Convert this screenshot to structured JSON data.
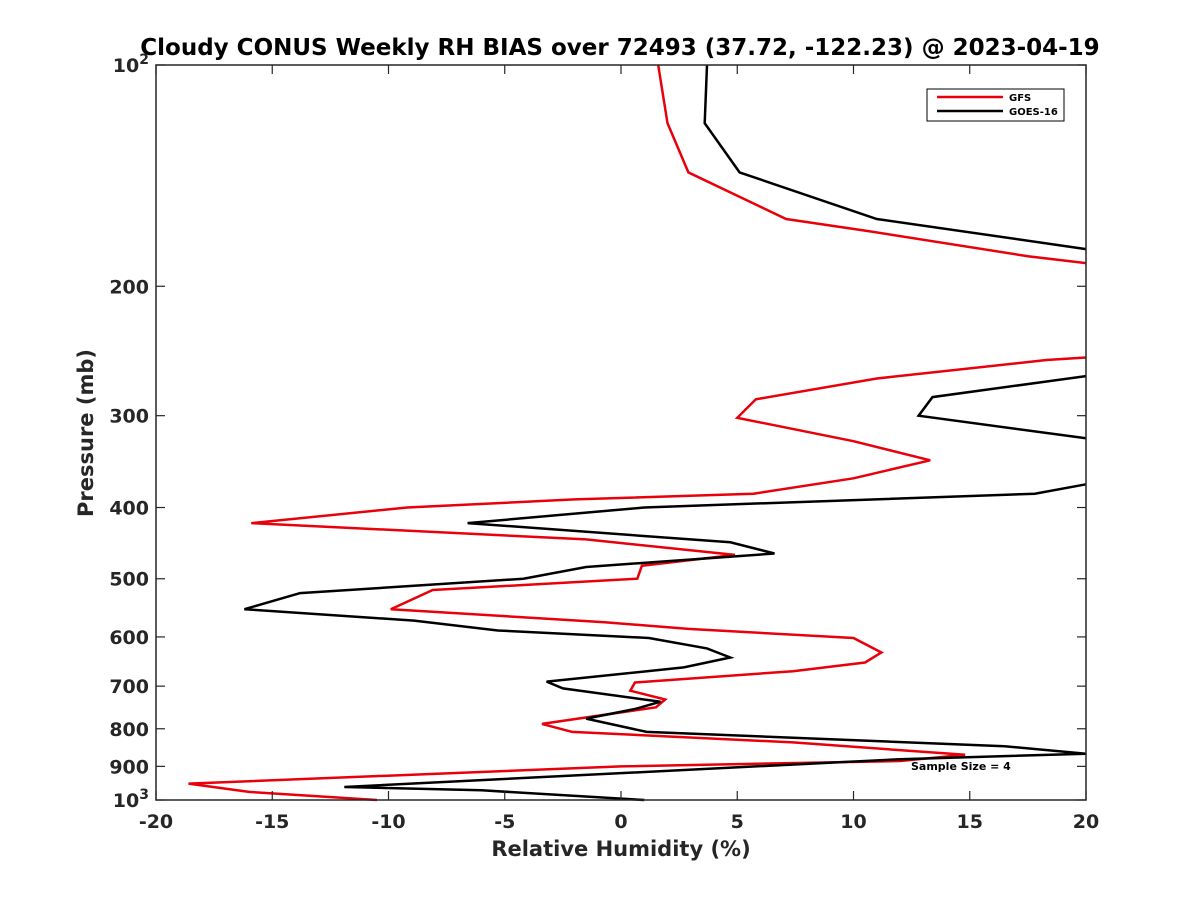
{
  "chart_data": {
    "type": "line",
    "title": "Cloudy CONUS Weekly RH BIAS over 72493 (37.72, -122.23) @ 2023-04-19",
    "xlabel": "Relative Humidity (%)",
    "ylabel": "Pressure (mb)",
    "xlim": [
      -20,
      20
    ],
    "ylim": [
      1000,
      100
    ],
    "y_scale": "log",
    "y_direction": "reversed",
    "x_ticks": [
      "-20",
      "-15",
      "-10",
      "-5",
      "0",
      "5",
      "10",
      "15",
      "20"
    ],
    "y_ticks": [
      {
        "value": 100,
        "base": "10",
        "exp": "2"
      },
      {
        "value": 200,
        "label": "200"
      },
      {
        "value": 300,
        "label": "300"
      },
      {
        "value": 400,
        "label": "400"
      },
      {
        "value": 500,
        "label": "500"
      },
      {
        "value": 600,
        "label": "600"
      },
      {
        "value": 700,
        "label": "700"
      },
      {
        "value": 800,
        "label": "800"
      },
      {
        "value": 900,
        "label": "900"
      },
      {
        "value": 1000,
        "base": "10",
        "exp": "3"
      }
    ],
    "legend": {
      "position": "top-right",
      "entries": [
        "GFS",
        "GOES-16"
      ]
    },
    "annotation": "Sample Size = 4",
    "series": [
      {
        "name": "GFS",
        "color": "#e8000b",
        "segments": [
          [
            {
              "x": 1.6,
              "p": 100
            },
            {
              "x": 2.0,
              "p": 120
            },
            {
              "x": 2.9,
              "p": 140
            },
            {
              "x": 7.1,
              "p": 162
            },
            {
              "x": 10.5,
              "p": 168
            },
            {
              "x": 17.5,
              "p": 182
            },
            {
              "x": 20.0,
              "p": 186
            }
          ],
          [
            {
              "x": 20.0,
              "p": 250
            },
            {
              "x": 18.3,
              "p": 252
            },
            {
              "x": 11.0,
              "p": 267
            },
            {
              "x": 5.8,
              "p": 285
            },
            {
              "x": 5.0,
              "p": 302
            },
            {
              "x": 10.0,
              "p": 325
            },
            {
              "x": 13.3,
              "p": 345
            },
            {
              "x": 10.0,
              "p": 365
            },
            {
              "x": 5.7,
              "p": 383
            },
            {
              "x": -2.0,
              "p": 390
            },
            {
              "x": -9.2,
              "p": 400
            },
            {
              "x": -15.9,
              "p": 420
            },
            {
              "x": -1.5,
              "p": 442
            },
            {
              "x": 4.9,
              "p": 464
            },
            {
              "x": 0.9,
              "p": 480
            },
            {
              "x": 0.7,
              "p": 500
            },
            {
              "x": -8.1,
              "p": 518
            },
            {
              "x": -9.9,
              "p": 550
            },
            {
              "x": -0.7,
              "p": 573
            },
            {
              "x": 2.9,
              "p": 585
            },
            {
              "x": 10.0,
              "p": 602
            },
            {
              "x": 11.2,
              "p": 630
            },
            {
              "x": 10.5,
              "p": 650
            },
            {
              "x": 7.4,
              "p": 668
            },
            {
              "x": 0.6,
              "p": 692
            },
            {
              "x": 0.4,
              "p": 710
            },
            {
              "x": 1.9,
              "p": 730
            },
            {
              "x": 1.5,
              "p": 748
            },
            {
              "x": -3.4,
              "p": 788
            },
            {
              "x": -2.1,
              "p": 808
            },
            {
              "x": 7.4,
              "p": 835
            },
            {
              "x": 14.8,
              "p": 868
            },
            {
              "x": 12.0,
              "p": 885
            },
            {
              "x": 0.0,
              "p": 900
            },
            {
              "x": -18.6,
              "p": 950
            },
            {
              "x": -16.0,
              "p": 975
            },
            {
              "x": -10.5,
              "p": 1000
            }
          ]
        ]
      },
      {
        "name": "GOES-16",
        "color": "#000000",
        "segments": [
          [
            {
              "x": 3.7,
              "p": 100
            },
            {
              "x": 3.6,
              "p": 120
            },
            {
              "x": 5.1,
              "p": 140
            },
            {
              "x": 11.0,
              "p": 162
            },
            {
              "x": 20.0,
              "p": 178
            }
          ],
          [
            {
              "x": 20.0,
              "p": 265
            },
            {
              "x": 13.4,
              "p": 283
            },
            {
              "x": 12.8,
              "p": 300
            },
            {
              "x": 20.0,
              "p": 322
            }
          ],
          [
            {
              "x": 20.0,
              "p": 372
            },
            {
              "x": 17.8,
              "p": 383
            },
            {
              "x": 1.0,
              "p": 400
            },
            {
              "x": -6.6,
              "p": 420
            },
            {
              "x": 4.7,
              "p": 446
            },
            {
              "x": 6.6,
              "p": 462
            },
            {
              "x": -1.5,
              "p": 482
            },
            {
              "x": -4.2,
              "p": 500
            },
            {
              "x": -13.8,
              "p": 523
            },
            {
              "x": -16.2,
              "p": 550
            },
            {
              "x": -8.9,
              "p": 570
            },
            {
              "x": -5.3,
              "p": 588
            },
            {
              "x": 1.2,
              "p": 602
            },
            {
              "x": 3.7,
              "p": 622
            },
            {
              "x": 4.7,
              "p": 640
            },
            {
              "x": 2.7,
              "p": 660
            },
            {
              "x": -3.2,
              "p": 690
            },
            {
              "x": -2.5,
              "p": 705
            },
            {
              "x": 1.7,
              "p": 735
            },
            {
              "x": 0.6,
              "p": 752
            },
            {
              "x": -1.5,
              "p": 775
            },
            {
              "x": 1.1,
              "p": 808
            },
            {
              "x": 16.5,
              "p": 845
            },
            {
              "x": 20.0,
              "p": 865
            },
            {
              "x": 12.0,
              "p": 880
            },
            {
              "x": -11.9,
              "p": 960
            },
            {
              "x": -6.0,
              "p": 970
            },
            {
              "x": 1.0,
              "p": 1000
            }
          ]
        ]
      }
    ]
  }
}
